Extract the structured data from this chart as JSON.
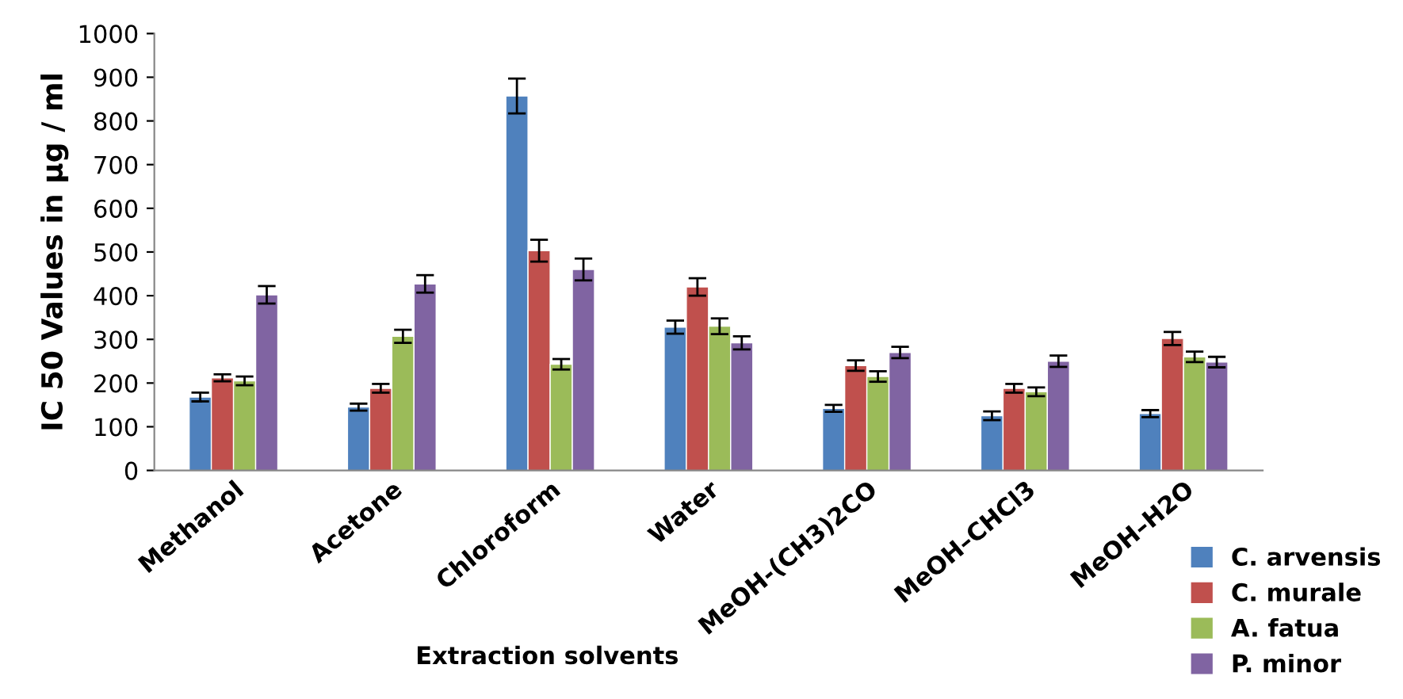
{
  "chart_data": {
    "type": "bar",
    "xlabel": "Extraction solvents",
    "ylabel": "IC 50 Values in µg / ml",
    "categories": [
      "Methanol",
      "Acetone",
      "Chloroform",
      "Water",
      "MeOH-(CH3)2CO",
      "MeOH–CHCl3",
      "MeOH–H2O"
    ],
    "series": [
      {
        "name": "C. arvensis",
        "color": "#4f81bd",
        "values": [
          168,
          145,
          857,
          328,
          142,
          125,
          130
        ],
        "errors": [
          10,
          8,
          40,
          15,
          8,
          10,
          8
        ]
      },
      {
        "name": "C. murale",
        "color": "#c0504d",
        "values": [
          212,
          188,
          503,
          420,
          240,
          188,
          302
        ],
        "errors": [
          8,
          10,
          25,
          20,
          12,
          10,
          15
        ]
      },
      {
        "name": "A. fatua",
        "color": "#9bbb59",
        "values": [
          205,
          307,
          243,
          330,
          215,
          180,
          260
        ],
        "errors": [
          10,
          15,
          12,
          18,
          12,
          10,
          12
        ]
      },
      {
        "name": "P. minor",
        "color": "#8064a2",
        "values": [
          402,
          427,
          460,
          292,
          270,
          250,
          248
        ],
        "errors": [
          20,
          20,
          25,
          15,
          13,
          13,
          12
        ]
      }
    ],
    "ylim": [
      0,
      1000
    ],
    "yticks": [
      0,
      100,
      200,
      300,
      400,
      500,
      600,
      700,
      800,
      900,
      1000
    ],
    "grid": false,
    "legend": "bottom right"
  }
}
